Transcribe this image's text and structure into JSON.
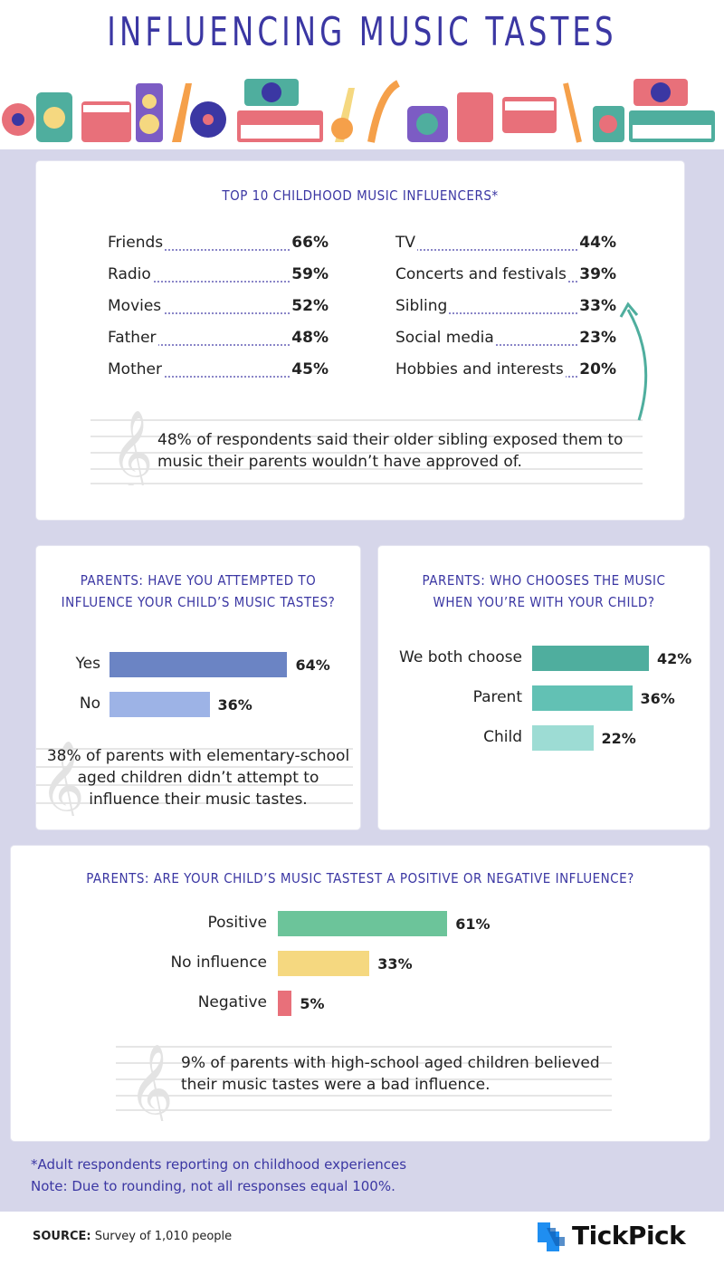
{
  "title": "INFLUENCING MUSIC TASTES",
  "influencers": {
    "title": "TOP 10 CHILDHOOD MUSIC INFLUENCERS*",
    "left": [
      {
        "label": "Friends",
        "pct": "66%"
      },
      {
        "label": "Radio",
        "pct": "59%"
      },
      {
        "label": "Movies",
        "pct": "52%"
      },
      {
        "label": "Father",
        "pct": "48%"
      },
      {
        "label": "Mother",
        "pct": "45%"
      }
    ],
    "right": [
      {
        "label": "TV",
        "pct": "44%"
      },
      {
        "label": "Concerts and festivals",
        "pct": "39%"
      },
      {
        "label": "Sibling",
        "pct": "33%"
      },
      {
        "label": "Social media",
        "pct": "23%"
      },
      {
        "label": "Hobbies and interests",
        "pct": "20%"
      }
    ],
    "note_line1": "48% of respondents said their older sibling exposed them to",
    "note_line2": "music their parents wouldn’t have approved of."
  },
  "attempt": {
    "title_line1": "PARENTS: HAVE YOU ATTEMPTED TO",
    "title_line2": "INFLUENCE YOUR CHILD’S MUSIC TASTES?",
    "note_line1": "38% of parents with elementary-school",
    "note_line2": "aged children didn’t attempt to",
    "note_line3": "influence their music tastes."
  },
  "chooser": {
    "title_line1": "PARENTS: WHO CHOOSES THE MUSIC",
    "title_line2": "WHEN YOU’RE WITH YOUR CHILD?"
  },
  "positive": {
    "title": "PARENTS: ARE YOUR CHILD’S MUSIC TASTEST A POSITIVE OR NEGATIVE INFLUENCE?",
    "note_line1": "9% of parents with high-school aged children believed",
    "note_line2": "their music tastes were a bad influence."
  },
  "footnote1": "*Adult respondents reporting on childhood experiences",
  "footnote2": "Note: Due to rounding, not all responses equal 100%.",
  "source_label": "SOURCE:",
  "source_text": " Survey of 1,010 people",
  "brand": "TickPick",
  "colors": {
    "title": "#3b37a3",
    "yes": "#6b84c4",
    "no": "#9db3e6",
    "both": "#4fae9e",
    "parent": "#62c1b4",
    "child": "#9ddcd4",
    "positive": "#6cc49a",
    "noinfluence": "#f5d880",
    "negative": "#e8707a",
    "logo": "#1f8ef1"
  },
  "chart_data": [
    {
      "type": "table",
      "title": "TOP 10 CHILDHOOD MUSIC INFLUENCERS*",
      "categories": [
        "Friends",
        "Radio",
        "Movies",
        "Father",
        "Mother",
        "TV",
        "Concerts and festivals",
        "Sibling",
        "Social media",
        "Hobbies and interests"
      ],
      "values": [
        66,
        59,
        52,
        48,
        45,
        44,
        39,
        33,
        23,
        20
      ]
    },
    {
      "type": "bar",
      "title": "PARENTS: HAVE YOU ATTEMPTED TO INFLUENCE YOUR CHILD’S MUSIC TASTES?",
      "categories": [
        "Yes",
        "No"
      ],
      "values": [
        64,
        36
      ],
      "value_labels": [
        "64%",
        "36%"
      ],
      "colors": [
        "#6b84c4",
        "#9db3e6"
      ],
      "xlim": [
        0,
        100
      ]
    },
    {
      "type": "bar",
      "title": "PARENTS: WHO CHOOSES THE MUSIC WHEN YOU’RE WITH YOUR CHILD?",
      "categories": [
        "We both choose",
        "Parent",
        "Child"
      ],
      "values": [
        42,
        36,
        22
      ],
      "value_labels": [
        "42%",
        "36%",
        "22%"
      ],
      "colors": [
        "#4fae9e",
        "#62c1b4",
        "#9ddcd4"
      ],
      "xlim": [
        0,
        100
      ]
    },
    {
      "type": "bar",
      "title": "PARENTS: ARE YOUR CHILD’S MUSIC TASTEST A POSITIVE OR NEGATIVE INFLUENCE?",
      "categories": [
        "Positive",
        "No influence",
        "Negative"
      ],
      "values": [
        61,
        33,
        5
      ],
      "value_labels": [
        "61%",
        "33%",
        "5%"
      ],
      "colors": [
        "#6cc49a",
        "#f5d880",
        "#e8707a"
      ],
      "xlim": [
        0,
        100
      ]
    }
  ]
}
